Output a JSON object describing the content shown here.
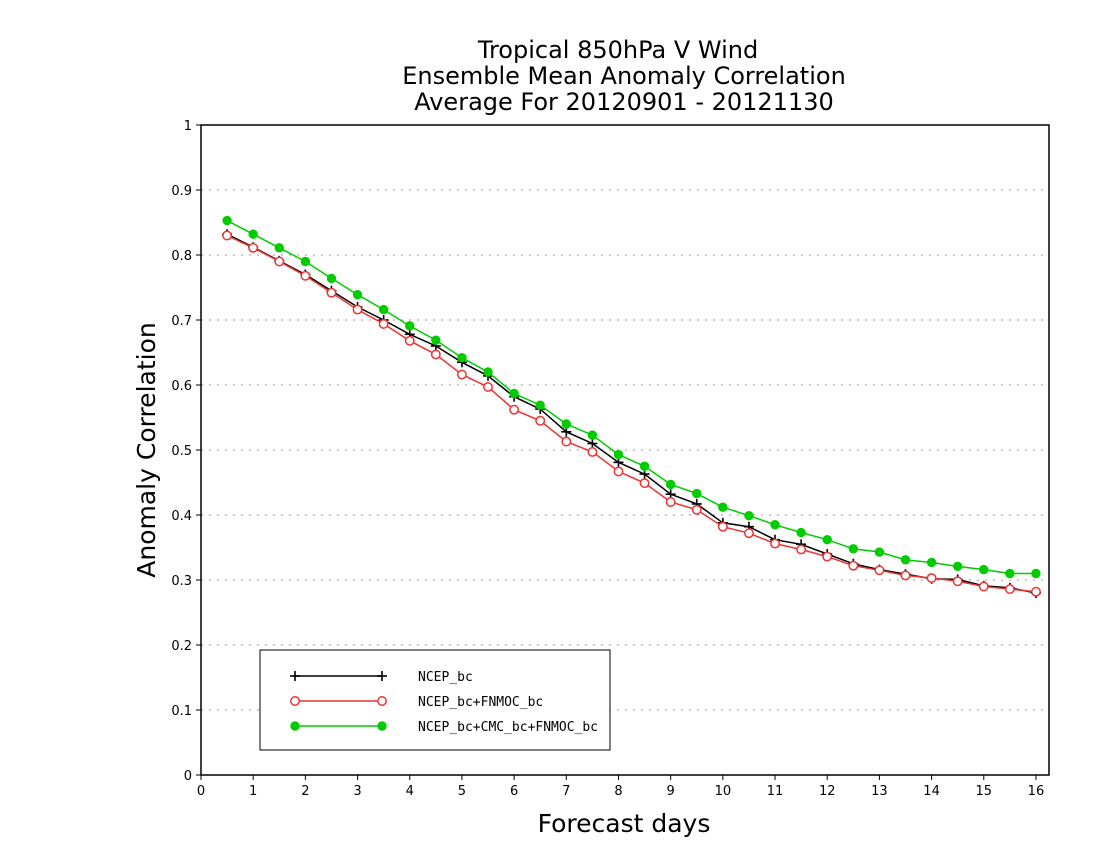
{
  "chart_data": {
    "type": "line",
    "title": [
      "Tropical 850hPa V Wind",
      "Ensemble Mean Anomaly Correlation",
      "Average For 20120901 - 20121130"
    ],
    "xlabel": "Forecast days",
    "ylabel": "Anomaly Correlation",
    "xlim": [
      0,
      16.25
    ],
    "ylim": [
      0,
      1
    ],
    "xticks": [
      0,
      1,
      2,
      3,
      4,
      5,
      6,
      7,
      8,
      9,
      10,
      11,
      12,
      13,
      14,
      15,
      16
    ],
    "yticks": [
      0,
      0.1,
      0.2,
      0.3,
      0.4,
      0.5,
      0.6,
      0.7,
      0.8,
      0.9,
      1
    ],
    "grid": "horizontal-dotted",
    "legend_position": "bottom-left",
    "x": [
      0.5,
      1,
      1.5,
      2,
      2.5,
      3,
      3.5,
      4,
      4.5,
      5,
      5.5,
      6,
      6.5,
      7,
      7.5,
      8,
      8.5,
      9,
      9.5,
      10,
      10.5,
      11,
      11.5,
      12,
      12.5,
      13,
      13.5,
      14,
      14.5,
      15,
      15.5,
      16
    ],
    "series": [
      {
        "name": "NCEP_bc",
        "color": "#000000",
        "marker": "plus",
        "values": [
          0.832,
          0.812,
          0.791,
          0.77,
          0.745,
          0.72,
          0.7,
          0.678,
          0.66,
          0.635,
          0.614,
          0.582,
          0.563,
          0.528,
          0.51,
          0.481,
          0.463,
          0.432,
          0.417,
          0.388,
          0.382,
          0.362,
          0.355,
          0.34,
          0.325,
          0.316,
          0.309,
          0.302,
          0.301,
          0.291,
          0.288,
          0.28
        ]
      },
      {
        "name": "NCEP_bc+FNMOC_bc",
        "color": "#ee3333",
        "marker": "open-circle",
        "values": [
          0.83,
          0.811,
          0.79,
          0.768,
          0.742,
          0.716,
          0.694,
          0.668,
          0.647,
          0.616,
          0.597,
          0.562,
          0.545,
          0.513,
          0.497,
          0.467,
          0.449,
          0.42,
          0.408,
          0.382,
          0.372,
          0.356,
          0.347,
          0.336,
          0.322,
          0.315,
          0.307,
          0.303,
          0.298,
          0.29,
          0.286,
          0.282
        ]
      },
      {
        "name": "NCEP_bc+CMC_bc+FNMOC_bc",
        "color": "#00cc00",
        "marker": "filled-circle",
        "values": [
          0.853,
          0.832,
          0.811,
          0.79,
          0.764,
          0.739,
          0.716,
          0.691,
          0.669,
          0.642,
          0.62,
          0.587,
          0.569,
          0.54,
          0.523,
          0.493,
          0.475,
          0.447,
          0.433,
          0.412,
          0.399,
          0.385,
          0.373,
          0.362,
          0.348,
          0.343,
          0.331,
          0.327,
          0.321,
          0.316,
          0.31,
          0.31
        ]
      }
    ]
  }
}
